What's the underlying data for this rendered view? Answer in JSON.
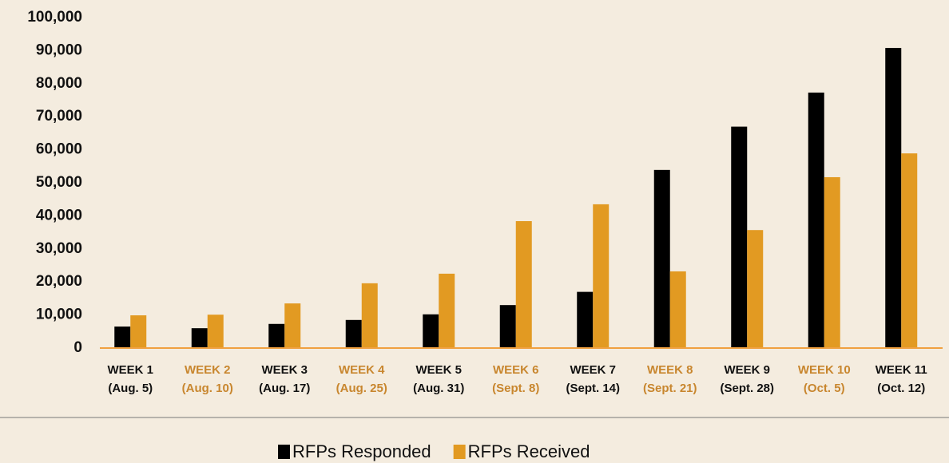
{
  "chart_data": {
    "type": "bar",
    "categories": [
      [
        "WEEK 1",
        "(Aug. 5)"
      ],
      [
        "WEEK 2",
        "(Aug. 10)"
      ],
      [
        "WEEK 3",
        "(Aug. 17)"
      ],
      [
        "WEEK 4",
        "(Aug. 25)"
      ],
      [
        "WEEK 5",
        "(Aug. 31)"
      ],
      [
        "WEEK 6",
        "(Sept. 8)"
      ],
      [
        "WEEK 7",
        "(Sept. 14)"
      ],
      [
        "WEEK 8",
        "(Sept. 21)"
      ],
      [
        "WEEK 9",
        "(Sept. 28)"
      ],
      [
        "WEEK 10",
        "(Oct. 5)"
      ],
      [
        "WEEK 11",
        "(Oct. 12)"
      ]
    ],
    "category_colors": [
      "#111111",
      "#c8862e",
      "#111111",
      "#c8862e",
      "#111111",
      "#c8862e",
      "#111111",
      "#c8862e",
      "#111111",
      "#c8862e",
      "#111111"
    ],
    "series": [
      {
        "name": "RFPs Responded",
        "color": "#000000",
        "values": [
          6500,
          6000,
          7300,
          8500,
          10200,
          13000,
          17000,
          53900,
          67000,
          77300,
          90800
        ]
      },
      {
        "name": "RFPs Received",
        "color": "#e29a22",
        "values": [
          9900,
          10100,
          13500,
          19600,
          22500,
          38400,
          43500,
          23200,
          35700,
          51700,
          58900
        ]
      }
    ],
    "ylim": [
      0,
      100000
    ],
    "yticks": [
      0,
      {
        "value": 10000,
        "label": "10,000"
      },
      {
        "value": 20000,
        "label": "20,000"
      },
      {
        "value": 30000,
        "label": "30,000"
      },
      {
        "value": 40000,
        "label": "40,000"
      },
      {
        "value": 50000,
        "label": "50,000"
      },
      {
        "value": 60000,
        "label": "60,000"
      },
      {
        "value": 70000,
        "label": "70,000"
      },
      {
        "value": 80000,
        "label": "80,000"
      },
      {
        "value": 90000,
        "label": "90,000"
      },
      {
        "value": 100000,
        "label": "100,000"
      }
    ],
    "grid": false,
    "legend": "bottom"
  }
}
